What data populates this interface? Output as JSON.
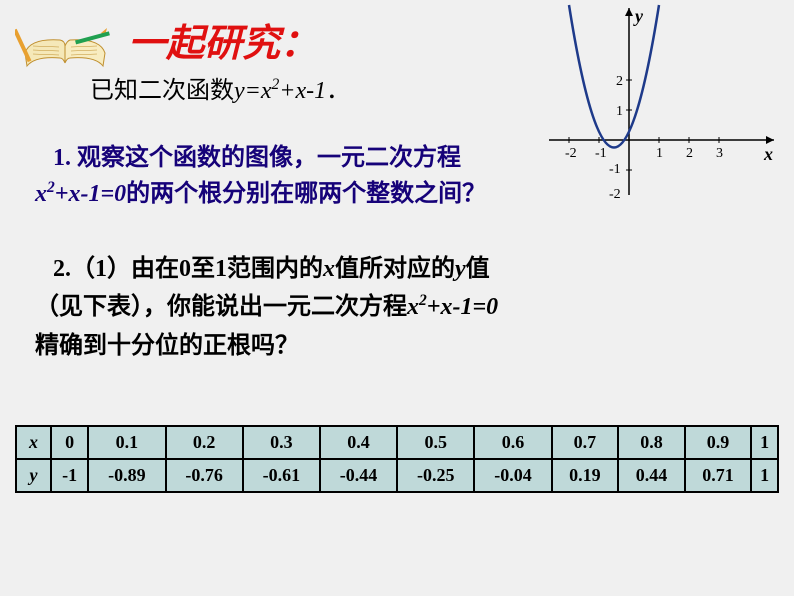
{
  "heading": "一起研究：",
  "subheading_pre": "已知二次函数",
  "subheading_eq": "y=x²+x-1",
  "subheading_post": "．",
  "q1_num": "1. ",
  "q1_line1a": "观察这个函数的图像，一元二次方程",
  "q1_line2_eq": "x²+x-1=0",
  "q1_line2_text": "的两个根分别在哪两个整数之间？",
  "q2_num": "2.",
  "q2_paren": "（1）",
  "q2_text1": "由在",
  "q2_text2": "0至1范围内的",
  "q2_var_x": "x",
  "q2_text3": "值所对应的",
  "q2_var_y": "y",
  "q2_text4": "值",
  "q2_line2": "（见下表），你能说出一元二次方程",
  "q2_eq": "x²+x-1=0",
  "q2_line3": "精确到十分位的正根吗？",
  "graph": {
    "y_label": "y",
    "x_label": "x",
    "x_ticks": [
      "-2",
      "-1",
      "1",
      "2",
      "3"
    ],
    "y_ticks_pos": [
      "1",
      "2"
    ],
    "y_ticks_neg": [
      "-1",
      "-2"
    ],
    "curve_color": "#1e3a8a",
    "axis_color": "#000"
  },
  "table": {
    "headers": [
      "x",
      "y"
    ],
    "x_values": [
      "0",
      "0.1",
      "0.2",
      "0.3",
      "0.4",
      "0.5",
      "0.6",
      "0.7",
      "0.8",
      "0.9",
      "1"
    ],
    "y_values": [
      "-1",
      "-0.89",
      "-0.76",
      "-0.61",
      "-0.44",
      "-0.25",
      "-0.04",
      "0.19",
      "0.44",
      "0.71",
      "1"
    ],
    "bg_color": "#bfd9d9",
    "border_color": "#000"
  },
  "book": {
    "page_color": "#f5e8b8",
    "binding_color": "#d4a020",
    "pencil_color": "#e8a030"
  }
}
